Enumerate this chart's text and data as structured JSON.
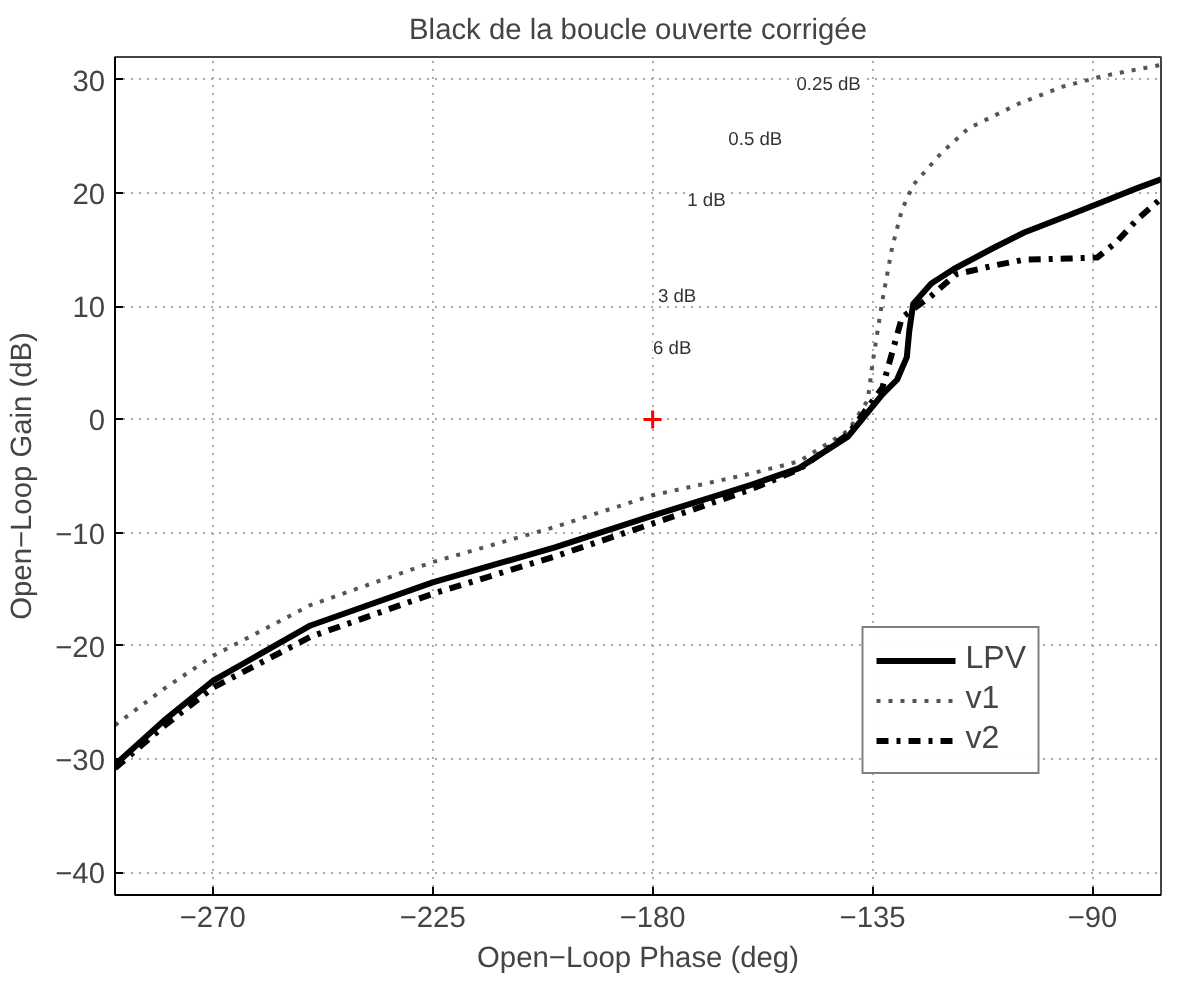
{
  "chart_data": {
    "type": "line",
    "title": "Black de la boucle ouverte corrigée",
    "xlabel": "Open−Loop Phase (deg)",
    "ylabel": "Open−Loop Gain (dB)",
    "xlim": [
      -290,
      -76
    ],
    "ylim": [
      -42,
      32
    ],
    "xticks": [
      {
        "value": -270,
        "label": "−270"
      },
      {
        "value": -225,
        "label": "−225"
      },
      {
        "value": -180,
        "label": "−180"
      },
      {
        "value": -135,
        "label": "−135"
      },
      {
        "value": -90,
        "label": "−90"
      }
    ],
    "yticks": [
      {
        "value": -40,
        "label": "−40"
      },
      {
        "value": -30,
        "label": "−30"
      },
      {
        "value": -20,
        "label": "−20"
      },
      {
        "value": -10,
        "label": "−10"
      },
      0,
      10,
      20,
      30
    ],
    "grid": true,
    "legend": "bottom right",
    "series": [
      {
        "name": "LPV",
        "color": "#000000",
        "line_style": "solid",
        "x": [
          -290,
          -280,
          -270,
          -250,
          -225,
          -200,
          -180,
          -160,
          -150,
          -140,
          -133,
          -130,
          -128,
          -127.5,
          -126.7,
          -123,
          -118.3,
          -110,
          -104,
          -95,
          -88,
          -81,
          -76
        ],
        "values": [
          -30.5,
          -26.6,
          -23.1,
          -18.2,
          -14.4,
          -11.3,
          -8.5,
          -5.8,
          -4.3,
          -1.5,
          2.2,
          3.5,
          5.5,
          7.8,
          10.2,
          12.0,
          13.3,
          15.2,
          16.5,
          18.0,
          19.2,
          20.4,
          21.2
        ]
      },
      {
        "name": "v1",
        "color": "#555555",
        "line_style": "dotted",
        "x": [
          -290,
          -280,
          -270,
          -250,
          -225,
          -200,
          -180,
          -160,
          -150,
          -140,
          -136,
          -135,
          -133,
          -131,
          -129,
          -126.7,
          -121,
          -115.4,
          -105,
          -96,
          -88,
          -81,
          -76
        ],
        "values": [
          -27,
          -23.8,
          -20.9,
          -16.4,
          -12.6,
          -9.5,
          -6.7,
          -4.8,
          -3.7,
          -1.0,
          1.7,
          5.0,
          10.5,
          15.2,
          18.5,
          20.7,
          23.5,
          25.7,
          27.9,
          29.4,
          30.3,
          30.9,
          31.3
        ]
      },
      {
        "name": "v2",
        "color": "#000000",
        "line_style": "dashdot",
        "x": [
          -290,
          -280,
          -270,
          -250,
          -225,
          -200,
          -180,
          -160,
          -150,
          -140,
          -133,
          -131,
          -129,
          -123,
          -118,
          -110,
          -104,
          -95,
          -89,
          -85,
          -81,
          -76
        ],
        "values": [
          -30.8,
          -27.1,
          -23.7,
          -19.2,
          -15.4,
          -12.1,
          -9.2,
          -6.2,
          -4.4,
          -1.3,
          2.8,
          5.9,
          9.0,
          10.9,
          12.8,
          13.6,
          14.1,
          14.2,
          14.3,
          15.7,
          17.6,
          19.5
        ]
      },
      {
        "type": "scatter",
        "color": "#ff0000",
        "marker": "cross",
        "x": [
          -180
        ],
        "values": [
          0
        ]
      }
    ],
    "annotations": [
      {
        "text": "0.25 dB",
        "x": -144,
        "y": 29.6
      },
      {
        "text": "0.5 dB",
        "x": -159,
        "y": 24.8
      },
      {
        "text": "1 dB",
        "x": -169,
        "y": 19.4
      },
      {
        "text": "3 dB",
        "x": -175,
        "y": 10.9
      },
      {
        "text": "6 dB",
        "x": -176,
        "y": 6.3
      }
    ]
  }
}
